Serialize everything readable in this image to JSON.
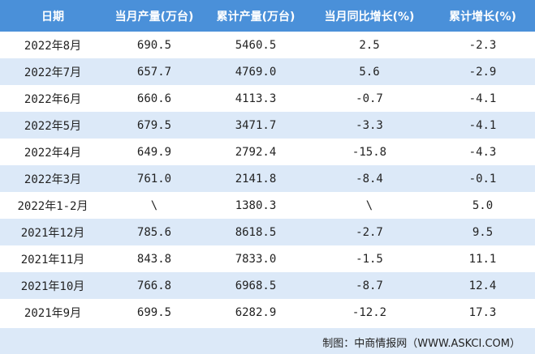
{
  "table": {
    "header": [
      "日期",
      "当月产量(万台)",
      "累计产量(万台)",
      "当月同比增长(%)",
      "累计增长(%)"
    ],
    "rows": [
      [
        "2022年8月",
        "690.5",
        "5460.5",
        "2.5",
        "-2.3"
      ],
      [
        "2022年7月",
        "657.7",
        "4769.0",
        "5.6",
        "-2.9"
      ],
      [
        "2022年6月",
        "660.6",
        "4113.3",
        "-0.7",
        "-4.1"
      ],
      [
        "2022年5月",
        "679.5",
        "3471.7",
        "-3.3",
        "-4.1"
      ],
      [
        "2022年4月",
        "649.9",
        "2792.4",
        "-15.8",
        "-4.3"
      ],
      [
        "2022年3月",
        "761.0",
        "2141.8",
        "-8.4",
        "-0.1"
      ],
      [
        "2022年1-2月",
        "\\",
        "1380.3",
        "\\",
        "5.0"
      ],
      [
        "2021年12月",
        "785.6",
        "8618.5",
        "-2.7",
        "9.5"
      ],
      [
        "2021年11月",
        "843.8",
        "7833.0",
        "-1.5",
        "11.1"
      ],
      [
        "2021年10月",
        "766.8",
        "6968.5",
        "-8.7",
        "12.4"
      ],
      [
        "2021年9月",
        "699.5",
        "6282.9",
        "-12.2",
        "17.3"
      ]
    ]
  },
  "footer": {
    "source": "制图：中商情报网（WWW.ASKCI.COM）"
  }
}
